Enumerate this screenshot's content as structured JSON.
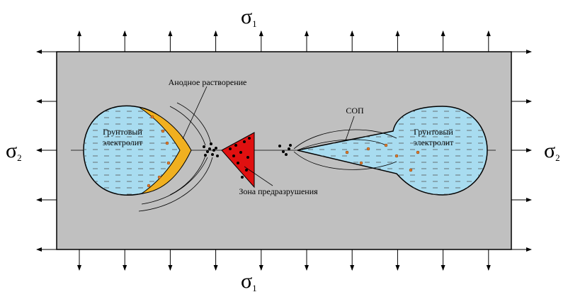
{
  "stress_labels": {
    "top": {
      "symbol": "σ",
      "index": "1"
    },
    "bottom": {
      "symbol": "σ",
      "index": "1"
    },
    "left": {
      "symbol": "σ",
      "index": "2"
    },
    "right": {
      "symbol": "σ",
      "index": "2"
    }
  },
  "annotations": {
    "left_cavity": {
      "line1": "Грунтовый",
      "line2": "электролит"
    },
    "right_cavity": {
      "line1": "Грунтовый",
      "line2": "электролит"
    },
    "anodic_dissolution": "Анодное растворение",
    "sop": "СОП",
    "pre_fracture_zone": "Зона предразрушения"
  }
}
